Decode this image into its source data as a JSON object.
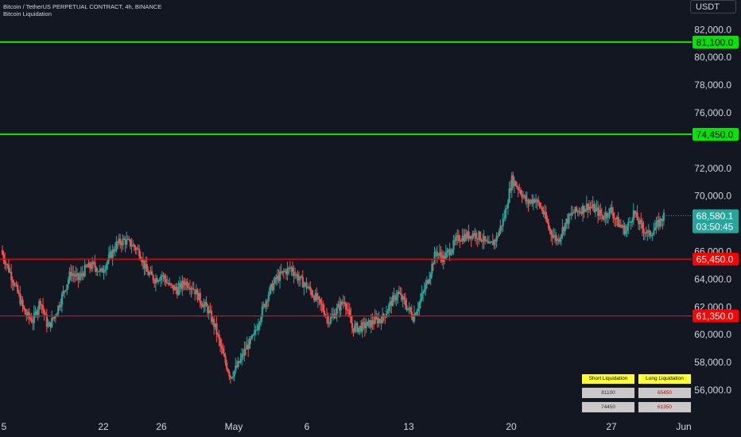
{
  "header": {
    "symbol_line": "Bitcoin / TetherUS PERPETUAL CONTRACT, 4h, BINANCE",
    "indicator_name": "Bitcoin Liquidation"
  },
  "currency": "USDT",
  "colors": {
    "background": "#131722",
    "up": "#26a69a",
    "down": "#ef5350",
    "short_line": "#00e600",
    "long_line": "#ff0000",
    "axis_text": "#d1d4dc"
  },
  "liquidation_table": {
    "headers": [
      "Short Liquidation",
      "Long Liquidation"
    ],
    "rows": [
      [
        "81100",
        "65450"
      ],
      [
        "74450",
        "61350"
      ]
    ]
  },
  "chart_data": {
    "type": "candlestick",
    "y_axis_labels": [
      "82,000.0",
      "80,000.0",
      "78,000.0",
      "76,000.0",
      "72,000.0",
      "70,000.0",
      "66,000.0",
      "64,000.0",
      "62,000.0",
      "60,000.0",
      "58,000.0",
      "56,000.0"
    ],
    "x_axis_labels": [
      "5",
      "22",
      "26",
      "May",
      "6",
      "13",
      "20",
      "27",
      "Jun"
    ],
    "ylim": [
      55000,
      83000
    ],
    "grid": false,
    "current_price": {
      "price": "68,580.1",
      "countdown": "03:50:45"
    },
    "horizontal_levels": [
      {
        "label": "81,100.0",
        "value": 81100,
        "kind": "short"
      },
      {
        "label": "74,450.0",
        "value": 74450,
        "kind": "short"
      },
      {
        "label": "65,450.0",
        "value": 65450,
        "kind": "long"
      },
      {
        "label": "61,350.0",
        "value": 61350,
        "kind": "long"
      }
    ],
    "close_path": [
      [
        0,
        65800
      ],
      [
        6,
        64500
      ],
      [
        12,
        63000
      ],
      [
        18,
        61500
      ],
      [
        24,
        61000
      ],
      [
        30,
        62500
      ],
      [
        36,
        60500
      ],
      [
        42,
        61500
      ],
      [
        48,
        63000
      ],
      [
        54,
        64500
      ],
      [
        60,
        64000
      ],
      [
        66,
        64800
      ],
      [
        72,
        65000
      ],
      [
        78,
        64500
      ],
      [
        84,
        65500
      ],
      [
        90,
        66500
      ],
      [
        96,
        66800
      ],
      [
        102,
        66500
      ],
      [
        108,
        66000
      ],
      [
        114,
        64500
      ],
      [
        120,
        64000
      ],
      [
        126,
        64300
      ],
      [
        132,
        63500
      ],
      [
        138,
        63200
      ],
      [
        144,
        63800
      ],
      [
        150,
        63500
      ],
      [
        156,
        62500
      ],
      [
        162,
        61800
      ],
      [
        168,
        60500
      ],
      [
        174,
        58500
      ],
      [
        180,
        57000
      ],
      [
        186,
        57800
      ],
      [
        192,
        59000
      ],
      [
        198,
        59800
      ],
      [
        204,
        61500
      ],
      [
        210,
        63000
      ],
      [
        216,
        64000
      ],
      [
        222,
        64500
      ],
      [
        228,
        64800
      ],
      [
        234,
        64000
      ],
      [
        240,
        63500
      ],
      [
        246,
        62800
      ],
      [
        252,
        62000
      ],
      [
        258,
        61000
      ],
      [
        264,
        61800
      ],
      [
        270,
        62500
      ],
      [
        276,
        60500
      ],
      [
        282,
        60500
      ],
      [
        288,
        60700
      ],
      [
        294,
        61000
      ],
      [
        300,
        61200
      ],
      [
        306,
        62200
      ],
      [
        312,
        63000
      ],
      [
        318,
        62200
      ],
      [
        324,
        61300
      ],
      [
        330,
        62500
      ],
      [
        336,
        64000
      ],
      [
        342,
        66000
      ],
      [
        348,
        65500
      ],
      [
        354,
        66200
      ],
      [
        360,
        67000
      ],
      [
        366,
        67100
      ],
      [
        372,
        67300
      ],
      [
        378,
        67000
      ],
      [
        384,
        66300
      ],
      [
        390,
        67000
      ],
      [
        396,
        68500
      ],
      [
        402,
        71200
      ],
      [
        408,
        70500
      ],
      [
        414,
        69500
      ],
      [
        420,
        69800
      ],
      [
        426,
        69000
      ],
      [
        432,
        67500
      ],
      [
        438,
        66800
      ],
      [
        444,
        68000
      ],
      [
        450,
        68800
      ],
      [
        456,
        69000
      ],
      [
        462,
        69300
      ],
      [
        468,
        69000
      ],
      [
        474,
        68500
      ],
      [
        480,
        69000
      ],
      [
        486,
        68000
      ],
      [
        492,
        67500
      ],
      [
        498,
        68800
      ],
      [
        504,
        67800
      ],
      [
        510,
        67200
      ],
      [
        516,
        67800
      ],
      [
        522,
        68580
      ]
    ]
  }
}
